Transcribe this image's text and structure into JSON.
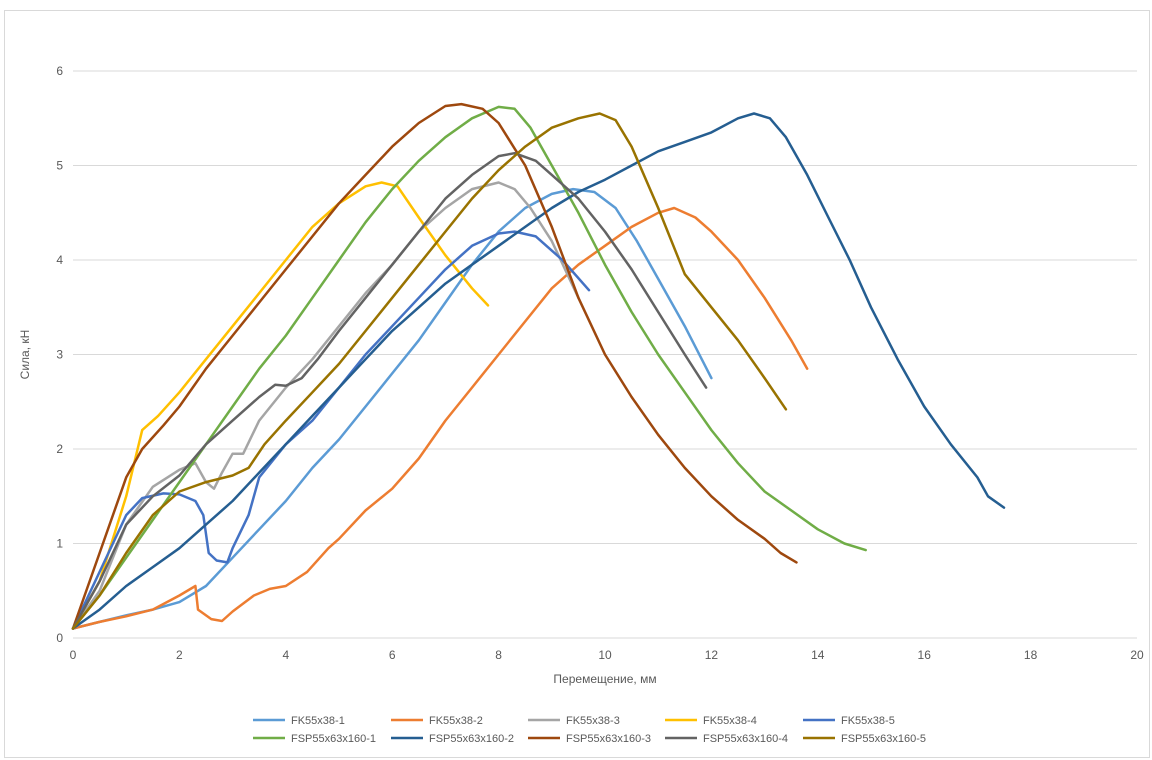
{
  "chart_data": {
    "type": "line",
    "title": "",
    "xlabel": "Перемещение, мм",
    "ylabel": "Сила, кН",
    "xlim": [
      0,
      20
    ],
    "ylim": [
      0,
      6
    ],
    "xticks": [
      "0",
      "2",
      "4",
      "6",
      "8",
      "10",
      "12",
      "14",
      "16",
      "18",
      "20"
    ],
    "yticks": [
      "0",
      "1",
      "2",
      "3",
      "4",
      "5",
      "6"
    ],
    "grid": "horizontal",
    "legend_position": "bottom",
    "series": [
      {
        "name": "FK55x38-1",
        "color": "#5b9bd5",
        "points": [
          [
            0,
            0.1
          ],
          [
            0.5,
            0.17
          ],
          [
            1,
            0.24
          ],
          [
            1.5,
            0.3
          ],
          [
            2,
            0.38
          ],
          [
            2.5,
            0.55
          ],
          [
            3,
            0.85
          ],
          [
            3.5,
            1.15
          ],
          [
            4,
            1.45
          ],
          [
            4.5,
            1.8
          ],
          [
            5,
            2.1
          ],
          [
            5.5,
            2.45
          ],
          [
            6,
            2.8
          ],
          [
            6.5,
            3.15
          ],
          [
            7,
            3.55
          ],
          [
            7.5,
            3.95
          ],
          [
            8,
            4.3
          ],
          [
            8.5,
            4.55
          ],
          [
            9,
            4.7
          ],
          [
            9.4,
            4.75
          ],
          [
            9.8,
            4.72
          ],
          [
            10.2,
            4.55
          ],
          [
            10.6,
            4.2
          ],
          [
            11,
            3.8
          ],
          [
            11.5,
            3.3
          ],
          [
            12,
            2.75
          ]
        ]
      },
      {
        "name": "FK55x38-2",
        "color": "#ed7d31",
        "points": [
          [
            0,
            0.1
          ],
          [
            0.5,
            0.17
          ],
          [
            1,
            0.23
          ],
          [
            1.5,
            0.3
          ],
          [
            2,
            0.45
          ],
          [
            2.3,
            0.55
          ],
          [
            2.35,
            0.3
          ],
          [
            2.6,
            0.2
          ],
          [
            2.8,
            0.18
          ],
          [
            3,
            0.28
          ],
          [
            3.4,
            0.45
          ],
          [
            3.7,
            0.52
          ],
          [
            4,
            0.55
          ],
          [
            4.4,
            0.7
          ],
          [
            4.8,
            0.95
          ],
          [
            5,
            1.05
          ],
          [
            5.5,
            1.35
          ],
          [
            6,
            1.58
          ],
          [
            6.5,
            1.9
          ],
          [
            7,
            2.3
          ],
          [
            7.5,
            2.65
          ],
          [
            8,
            3.0
          ],
          [
            8.5,
            3.35
          ],
          [
            9,
            3.7
          ],
          [
            9.5,
            3.95
          ],
          [
            10,
            4.15
          ],
          [
            10.5,
            4.35
          ],
          [
            11,
            4.5
          ],
          [
            11.3,
            4.55
          ],
          [
            11.7,
            4.45
          ],
          [
            12,
            4.3
          ],
          [
            12.5,
            4.0
          ],
          [
            13,
            3.6
          ],
          [
            13.5,
            3.15
          ],
          [
            13.8,
            2.85
          ]
        ]
      },
      {
        "name": "FK55x38-3",
        "color": "#a5a5a5",
        "points": [
          [
            0,
            0.1
          ],
          [
            0.5,
            0.5
          ],
          [
            1,
            1.2
          ],
          [
            1.5,
            1.6
          ],
          [
            2,
            1.78
          ],
          [
            2.3,
            1.85
          ],
          [
            2.5,
            1.65
          ],
          [
            2.65,
            1.58
          ],
          [
            2.8,
            1.75
          ],
          [
            3,
            1.95
          ],
          [
            3.2,
            1.95
          ],
          [
            3.5,
            2.3
          ],
          [
            4,
            2.65
          ],
          [
            4.5,
            2.95
          ],
          [
            5,
            3.3
          ],
          [
            5.5,
            3.65
          ],
          [
            6,
            3.95
          ],
          [
            6.5,
            4.3
          ],
          [
            7,
            4.55
          ],
          [
            7.5,
            4.75
          ],
          [
            8,
            4.82
          ],
          [
            8.3,
            4.75
          ],
          [
            8.6,
            4.55
          ],
          [
            9,
            4.2
          ],
          [
            9.5,
            3.6
          ]
        ]
      },
      {
        "name": "FK55x38-4",
        "color": "#ffc000",
        "points": [
          [
            0,
            0.1
          ],
          [
            0.5,
            0.6
          ],
          [
            1,
            1.5
          ],
          [
            1.3,
            2.2
          ],
          [
            1.6,
            2.35
          ],
          [
            2,
            2.6
          ],
          [
            2.5,
            2.95
          ],
          [
            3,
            3.3
          ],
          [
            3.5,
            3.65
          ],
          [
            4,
            4.0
          ],
          [
            4.5,
            4.35
          ],
          [
            5,
            4.6
          ],
          [
            5.5,
            4.78
          ],
          [
            5.8,
            4.82
          ],
          [
            6.1,
            4.78
          ],
          [
            6.5,
            4.45
          ],
          [
            7,
            4.05
          ],
          [
            7.5,
            3.7
          ],
          [
            7.8,
            3.52
          ]
        ]
      },
      {
        "name": "FK55x38-5",
        "color": "#4472c4",
        "points": [
          [
            0,
            0.1
          ],
          [
            0.5,
            0.7
          ],
          [
            1,
            1.3
          ],
          [
            1.3,
            1.48
          ],
          [
            1.7,
            1.53
          ],
          [
            2,
            1.52
          ],
          [
            2.3,
            1.45
          ],
          [
            2.45,
            1.3
          ],
          [
            2.55,
            0.9
          ],
          [
            2.7,
            0.82
          ],
          [
            2.9,
            0.8
          ],
          [
            3,
            0.95
          ],
          [
            3.3,
            1.3
          ],
          [
            3.5,
            1.7
          ],
          [
            4,
            2.05
          ],
          [
            4.5,
            2.3
          ],
          [
            5,
            2.65
          ],
          [
            5.5,
            3.0
          ],
          [
            6,
            3.3
          ],
          [
            6.5,
            3.6
          ],
          [
            7,
            3.9
          ],
          [
            7.5,
            4.15
          ],
          [
            8,
            4.28
          ],
          [
            8.3,
            4.3
          ],
          [
            8.7,
            4.25
          ],
          [
            9.2,
            4.0
          ],
          [
            9.7,
            3.68
          ]
        ]
      },
      {
        "name": "FSP55x63x160-1",
        "color": "#70ad47",
        "points": [
          [
            0,
            0.1
          ],
          [
            0.5,
            0.45
          ],
          [
            1,
            0.85
          ],
          [
            1.5,
            1.25
          ],
          [
            2,
            1.65
          ],
          [
            2.5,
            2.05
          ],
          [
            3,
            2.45
          ],
          [
            3.5,
            2.85
          ],
          [
            4,
            3.2
          ],
          [
            4.5,
            3.6
          ],
          [
            5,
            4.0
          ],
          [
            5.5,
            4.4
          ],
          [
            6,
            4.75
          ],
          [
            6.5,
            5.05
          ],
          [
            7,
            5.3
          ],
          [
            7.5,
            5.5
          ],
          [
            8,
            5.62
          ],
          [
            8.3,
            5.6
          ],
          [
            8.6,
            5.4
          ],
          [
            9,
            5.0
          ],
          [
            9.5,
            4.5
          ],
          [
            10,
            3.95
          ],
          [
            10.5,
            3.45
          ],
          [
            11,
            3.0
          ],
          [
            11.5,
            2.6
          ],
          [
            12,
            2.2
          ],
          [
            12.5,
            1.85
          ],
          [
            13,
            1.55
          ],
          [
            13.5,
            1.35
          ],
          [
            14,
            1.15
          ],
          [
            14.5,
            1.0
          ],
          [
            14.9,
            0.93
          ]
        ]
      },
      {
        "name": "FSP55x63x160-2",
        "color": "#255e91",
        "points": [
          [
            0,
            0.1
          ],
          [
            0.5,
            0.3
          ],
          [
            1,
            0.55
          ],
          [
            1.5,
            0.75
          ],
          [
            2,
            0.95
          ],
          [
            2.5,
            1.2
          ],
          [
            3,
            1.45
          ],
          [
            3.5,
            1.75
          ],
          [
            4,
            2.05
          ],
          [
            4.5,
            2.35
          ],
          [
            5,
            2.65
          ],
          [
            5.5,
            2.95
          ],
          [
            6,
            3.25
          ],
          [
            6.5,
            3.5
          ],
          [
            7,
            3.75
          ],
          [
            7.5,
            3.95
          ],
          [
            8,
            4.15
          ],
          [
            8.5,
            4.35
          ],
          [
            9,
            4.55
          ],
          [
            9.5,
            4.72
          ],
          [
            10,
            4.85
          ],
          [
            10.5,
            5.0
          ],
          [
            11,
            5.15
          ],
          [
            11.5,
            5.25
          ],
          [
            12,
            5.35
          ],
          [
            12.5,
            5.5
          ],
          [
            12.8,
            5.55
          ],
          [
            13.1,
            5.5
          ],
          [
            13.4,
            5.3
          ],
          [
            13.8,
            4.9
          ],
          [
            14.2,
            4.45
          ],
          [
            14.6,
            4.0
          ],
          [
            15,
            3.5
          ],
          [
            15.5,
            2.95
          ],
          [
            16,
            2.45
          ],
          [
            16.5,
            2.05
          ],
          [
            17,
            1.7
          ],
          [
            17.2,
            1.5
          ],
          [
            17.5,
            1.38
          ]
        ]
      },
      {
        "name": "FSP55x63x160-3",
        "color": "#9e480e",
        "points": [
          [
            0,
            0.1
          ],
          [
            0.5,
            0.9
          ],
          [
            1,
            1.7
          ],
          [
            1.3,
            2.0
          ],
          [
            1.7,
            2.25
          ],
          [
            2,
            2.45
          ],
          [
            2.5,
            2.85
          ],
          [
            3,
            3.2
          ],
          [
            3.5,
            3.55
          ],
          [
            4,
            3.9
          ],
          [
            4.5,
            4.25
          ],
          [
            5,
            4.6
          ],
          [
            5.5,
            4.9
          ],
          [
            6,
            5.2
          ],
          [
            6.5,
            5.45
          ],
          [
            7,
            5.63
          ],
          [
            7.3,
            5.65
          ],
          [
            7.7,
            5.6
          ],
          [
            8,
            5.45
          ],
          [
            8.5,
            5.0
          ],
          [
            9,
            4.35
          ],
          [
            9.5,
            3.6
          ],
          [
            10,
            3.0
          ],
          [
            10.5,
            2.55
          ],
          [
            11,
            2.15
          ],
          [
            11.5,
            1.8
          ],
          [
            12,
            1.5
          ],
          [
            12.5,
            1.25
          ],
          [
            13,
            1.05
          ],
          [
            13.3,
            0.9
          ],
          [
            13.6,
            0.8
          ]
        ]
      },
      {
        "name": "FSP55x63x160-4",
        "color": "#636363",
        "points": [
          [
            0,
            0.1
          ],
          [
            0.5,
            0.6
          ],
          [
            1,
            1.2
          ],
          [
            1.5,
            1.5
          ],
          [
            2,
            1.72
          ],
          [
            2.5,
            2.05
          ],
          [
            3,
            2.3
          ],
          [
            3.5,
            2.55
          ],
          [
            3.8,
            2.68
          ],
          [
            4,
            2.67
          ],
          [
            4.3,
            2.75
          ],
          [
            4.6,
            2.95
          ],
          [
            5,
            3.25
          ],
          [
            5.5,
            3.6
          ],
          [
            6,
            3.95
          ],
          [
            6.5,
            4.3
          ],
          [
            7,
            4.65
          ],
          [
            7.5,
            4.9
          ],
          [
            8,
            5.1
          ],
          [
            8.3,
            5.13
          ],
          [
            8.7,
            5.05
          ],
          [
            9,
            4.9
          ],
          [
            9.5,
            4.65
          ],
          [
            10,
            4.3
          ],
          [
            10.5,
            3.9
          ],
          [
            11,
            3.45
          ],
          [
            11.5,
            3.0
          ],
          [
            11.9,
            2.65
          ]
        ]
      },
      {
        "name": "FSP55x63x160-5",
        "color": "#997300",
        "points": [
          [
            0,
            0.1
          ],
          [
            0.5,
            0.45
          ],
          [
            1,
            0.9
          ],
          [
            1.5,
            1.3
          ],
          [
            2,
            1.55
          ],
          [
            2.5,
            1.65
          ],
          [
            3,
            1.72
          ],
          [
            3.3,
            1.8
          ],
          [
            3.6,
            2.05
          ],
          [
            4,
            2.3
          ],
          [
            4.5,
            2.6
          ],
          [
            5,
            2.9
          ],
          [
            5.5,
            3.25
          ],
          [
            6,
            3.6
          ],
          [
            6.5,
            3.95
          ],
          [
            7,
            4.3
          ],
          [
            7.5,
            4.65
          ],
          [
            8,
            4.95
          ],
          [
            8.5,
            5.2
          ],
          [
            9,
            5.4
          ],
          [
            9.5,
            5.5
          ],
          [
            9.9,
            5.55
          ],
          [
            10.2,
            5.48
          ],
          [
            10.5,
            5.2
          ],
          [
            11,
            4.55
          ],
          [
            11.5,
            3.85
          ],
          [
            12,
            3.5
          ],
          [
            12.5,
            3.15
          ],
          [
            13,
            2.75
          ],
          [
            13.4,
            2.42
          ]
        ]
      }
    ]
  }
}
